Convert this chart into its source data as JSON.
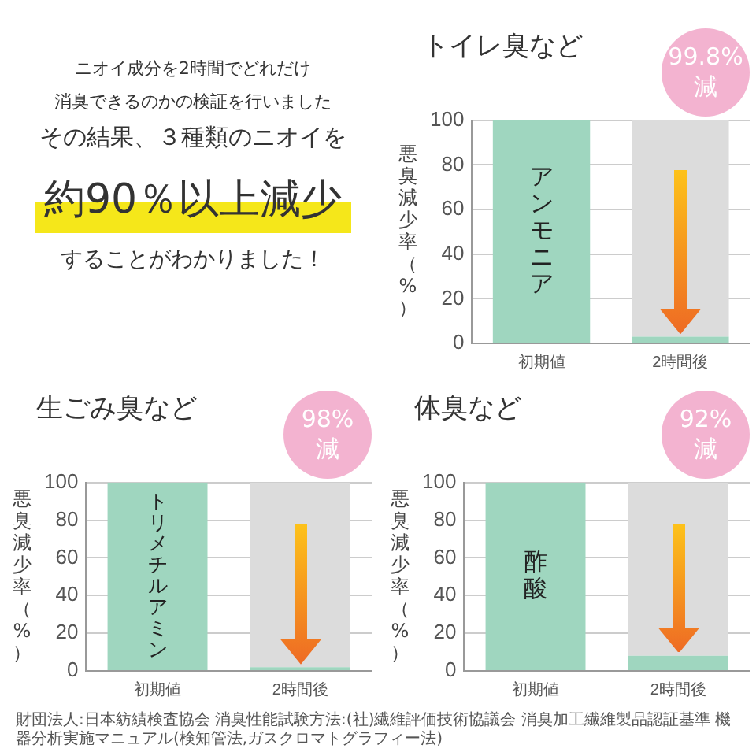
{
  "chart_data": [
    {
      "type": "other",
      "annotations": [
        "ニオイ成分を2時間でどれだけ",
        "消臭できるのかの検証を行いました",
        "その結果、３種類のニオイを",
        "約90％以上減少",
        "することがわかりました！"
      ]
    },
    {
      "type": "bar",
      "title": "トイレ臭など",
      "ylabel": "悪臭減少率（%）",
      "categories": [
        "初期値",
        "2時間後"
      ],
      "stacked": true,
      "grid": "y",
      "ylim": [
        0,
        100
      ],
      "yticks": [
        0,
        20,
        40,
        60,
        80,
        100
      ],
      "series": [
        {
          "color": "#9fd6bf",
          "values": [
            100,
            3
          ]
        },
        {
          "color": "#dcdcdc",
          "values": [
            null,
            97
          ]
        }
      ],
      "annotations": [
        "99.8%\n減",
        "アンモニア"
      ]
    },
    {
      "type": "bar",
      "title": "生ごみ臭など",
      "ylabel": "悪臭減少率（%）",
      "categories": [
        "初期値",
        "2時間後"
      ],
      "stacked": true,
      "grid": "y",
      "ylim": [
        0,
        100
      ],
      "yticks": [
        0,
        20,
        40,
        60,
        80,
        100
      ],
      "series": [
        {
          "color": "#9fd6bf",
          "values": [
            100,
            2
          ]
        },
        {
          "color": "#dcdcdc",
          "values": [
            null,
            98
          ]
        }
      ],
      "annotations": [
        "98%\n減",
        "トリメチルアミン"
      ]
    },
    {
      "type": "bar",
      "title": "体臭など",
      "ylabel": "悪臭減少率（%）",
      "categories": [
        "初期値",
        "2時間後"
      ],
      "stacked": true,
      "grid": "y",
      "ylim": [
        0,
        100
      ],
      "yticks": [
        0,
        20,
        40,
        60,
        80,
        100
      ],
      "series": [
        {
          "color": "#9fd6bf",
          "values": [
            100,
            8
          ]
        },
        {
          "color": "#dcdcdc",
          "values": [
            null,
            92
          ]
        }
      ],
      "annotations": [
        "92%\n減",
        "酢酸",
        "財団法人:日本紡績検査協会 消臭性能試験方法:(社)繊維評価技術協議会 消臭加工繊維製品認証基準 機器分析実施マニュアル(検知管法,ガスクロマトグラフィー法)"
      ]
    }
  ]
}
